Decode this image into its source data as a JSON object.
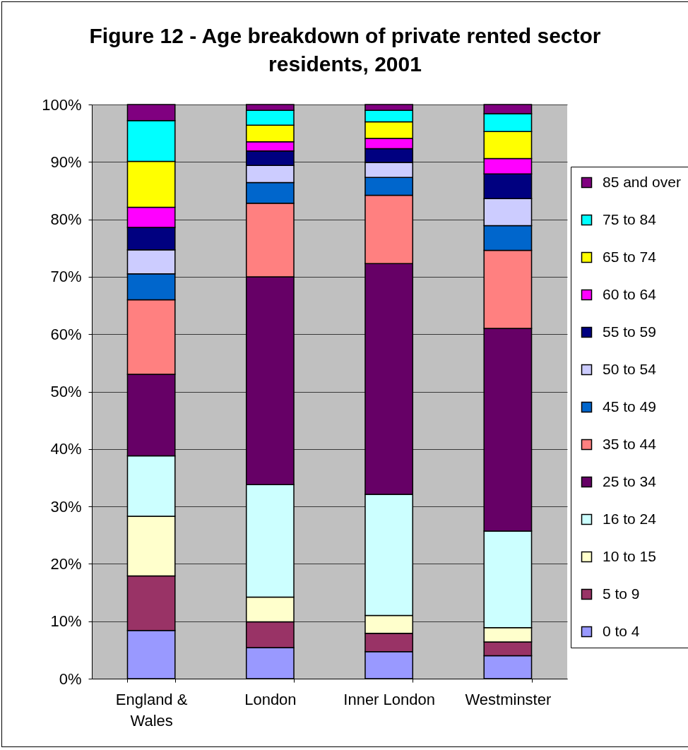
{
  "chart_data": {
    "type": "bar",
    "title": "Figure 12 - Age breakdown of private rented sector residents, 2001",
    "categories": [
      "England & Wales",
      "London",
      "Inner London",
      "Westminster"
    ],
    "stacked": true,
    "series": [
      {
        "name": "0 to 4",
        "color": "#9999ff",
        "values": [
          8.4,
          5.4,
          4.7,
          4.0
        ]
      },
      {
        "name": "5 to 9",
        "color": "#993366",
        "values": [
          9.5,
          4.5,
          3.2,
          2.4
        ]
      },
      {
        "name": "10 to 15",
        "color": "#ffffcc",
        "values": [
          10.4,
          4.3,
          3.1,
          2.5
        ]
      },
      {
        "name": "16 to 24",
        "color": "#ccffff",
        "values": [
          10.5,
          19.6,
          21.1,
          16.8
        ]
      },
      {
        "name": "25 to 34",
        "color": "#660066",
        "values": [
          14.2,
          36.2,
          40.2,
          35.3
        ]
      },
      {
        "name": "35 to 44",
        "color": "#ff8080",
        "values": [
          13.0,
          12.8,
          11.9,
          13.6
        ]
      },
      {
        "name": "45 to 49",
        "color": "#0066cc",
        "values": [
          4.5,
          3.6,
          3.1,
          4.3
        ]
      },
      {
        "name": "50 to 54",
        "color": "#ccccff",
        "values": [
          4.2,
          3.0,
          2.6,
          4.7
        ]
      },
      {
        "name": "55 to 59",
        "color": "#000080",
        "values": [
          3.9,
          2.5,
          2.4,
          4.3
        ]
      },
      {
        "name": "60 to 64",
        "color": "#ff00ff",
        "values": [
          3.5,
          1.6,
          1.8,
          2.7
        ]
      },
      {
        "name": "65 to 74",
        "color": "#ffff00",
        "values": [
          8.0,
          2.9,
          2.9,
          4.7
        ]
      },
      {
        "name": "75 to 84",
        "color": "#00ffff",
        "values": [
          7.1,
          2.6,
          2.0,
          3.1
        ]
      },
      {
        "name": "85 and over",
        "color": "#800080",
        "values": [
          2.8,
          1.0,
          1.0,
          1.6
        ]
      }
    ],
    "ylim": [
      0,
      100
    ],
    "yticks": [
      {
        "value": 0,
        "label": "0%"
      },
      {
        "value": 10,
        "label": "10%"
      },
      {
        "value": 20,
        "label": "20%"
      },
      {
        "value": 30,
        "label": "30%"
      },
      {
        "value": 40,
        "label": "40%"
      },
      {
        "value": 50,
        "label": "50%"
      },
      {
        "value": 60,
        "label": "60%"
      },
      {
        "value": 70,
        "label": "70%"
      },
      {
        "value": 80,
        "label": "80%"
      },
      {
        "value": 90,
        "label": "90%"
      },
      {
        "value": 100,
        "label": "100%"
      }
    ],
    "grid": "y",
    "legend": "right"
  }
}
